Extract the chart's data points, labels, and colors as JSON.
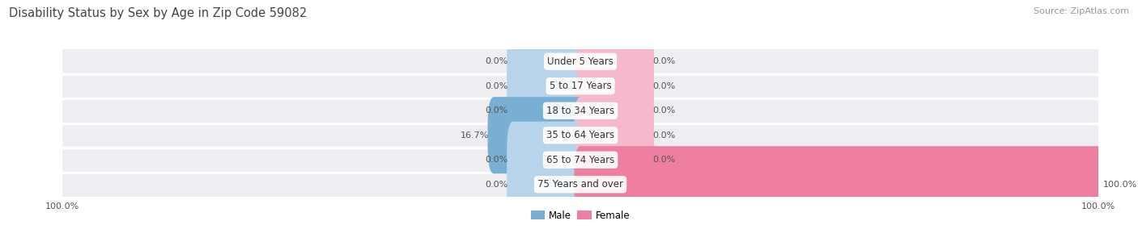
{
  "title": "Disability Status by Sex by Age in Zip Code 59082",
  "source": "Source: ZipAtlas.com",
  "categories": [
    "Under 5 Years",
    "5 to 17 Years",
    "18 to 34 Years",
    "35 to 64 Years",
    "65 to 74 Years",
    "75 Years and over"
  ],
  "male_values": [
    0.0,
    0.0,
    0.0,
    16.7,
    0.0,
    0.0
  ],
  "female_values": [
    0.0,
    0.0,
    0.0,
    0.0,
    0.0,
    100.0
  ],
  "male_color": "#7aafd4",
  "female_color": "#ef7fa0",
  "male_stub_color": "#b8d4ea",
  "female_stub_color": "#f5b8cc",
  "row_bg_color": "#ededf2",
  "row_sep_color": "#ffffff",
  "max_value": 100.0,
  "stub_size": 13.0,
  "title_fontsize": 10.5,
  "label_fontsize": 8.5,
  "value_fontsize": 8.0,
  "source_fontsize": 8.0,
  "legend_fontsize": 8.5,
  "title_color": "#444444",
  "value_color": "#555555",
  "source_color": "#999999",
  "cat_label_color": "#333333"
}
